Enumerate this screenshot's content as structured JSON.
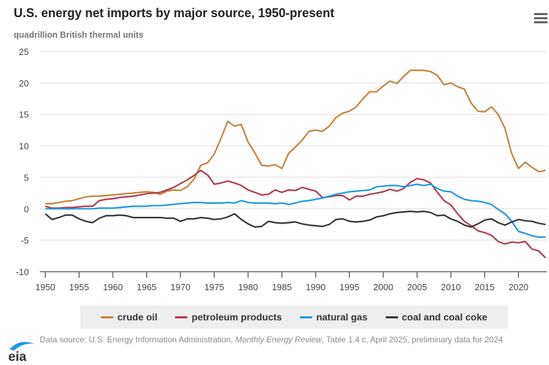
{
  "header": {
    "title": "U.S. energy net imports by major source, 1950-present",
    "subtitle": "quadrillion British thermal units",
    "menu_icon": "hamburger-menu-icon"
  },
  "colors": {
    "crude_oil": "#c8803a",
    "petroleum_products": "#b03a4c",
    "natural_gas": "#1a9ae0",
    "coal": "#333333",
    "grid": "#e8e8e8",
    "axis": "#666666"
  },
  "footer": {
    "logo_text": "eia",
    "source_prefix": "Data source: U.S. Energy Information Administration, ",
    "source_italic": "Monthly Energy Review",
    "source_suffix": ", Table 1.4 c, April 2025, preliminary data for 2024"
  },
  "chart_data": {
    "type": "line",
    "title": "U.S. energy net imports by major source, 1950-present",
    "ylabel": "quadrillion British thermal units",
    "xlabel": "",
    "ylim": [
      -10,
      25
    ],
    "xlim": [
      1950,
      2024
    ],
    "yticks": [
      25,
      20,
      15,
      10,
      5,
      0,
      -5,
      -10
    ],
    "xticks": [
      1950,
      1955,
      1960,
      1965,
      1970,
      1975,
      1980,
      1985,
      1990,
      1995,
      2000,
      2005,
      2010,
      2015,
      2020
    ],
    "grid": true,
    "legend_position": "bottom",
    "x_start": 1950,
    "series": [
      {
        "name": "crude oil",
        "key": "crude_oil",
        "values": [
          0.8,
          0.8,
          1.0,
          1.2,
          1.3,
          1.6,
          1.9,
          2.0,
          2.0,
          2.1,
          2.2,
          2.3,
          2.4,
          2.5,
          2.6,
          2.7,
          2.6,
          2.3,
          2.8,
          3.0,
          2.9,
          3.5,
          4.7,
          6.9,
          7.3,
          8.7,
          11.2,
          13.9,
          13.1,
          13.4,
          10.6,
          8.9,
          6.9,
          6.8,
          7.0,
          6.4,
          8.8,
          9.8,
          10.9,
          12.3,
          12.5,
          12.3,
          13.1,
          14.5,
          15.2,
          15.5,
          16.2,
          17.5,
          18.6,
          18.6,
          19.5,
          20.3,
          19.9,
          21.0,
          22.0,
          22.0,
          22.0,
          21.8,
          21.2,
          19.7,
          20.0,
          19.4,
          19.0,
          16.8,
          15.5,
          15.4,
          16.2,
          15.0,
          12.8,
          8.8,
          6.4,
          7.4,
          6.6,
          5.9,
          6.1
        ]
      },
      {
        "name": "petroleum products",
        "key": "petroleum_products",
        "values": [
          0.4,
          0.1,
          0.1,
          0.2,
          0.2,
          0.3,
          0.4,
          0.4,
          1.3,
          1.5,
          1.6,
          1.8,
          1.9,
          2.0,
          2.2,
          2.4,
          2.5,
          2.6,
          3.0,
          3.4,
          4.0,
          4.6,
          5.3,
          6.1,
          5.4,
          3.9,
          4.1,
          4.4,
          4.1,
          3.7,
          3.0,
          2.6,
          2.2,
          2.3,
          3.0,
          2.6,
          3.0,
          2.9,
          3.4,
          3.1,
          2.8,
          1.8,
          1.9,
          2.1,
          2.1,
          1.4,
          2.0,
          2.0,
          2.3,
          2.5,
          2.7,
          3.1,
          2.8,
          3.2,
          4.2,
          4.8,
          4.6,
          4.1,
          2.6,
          1.3,
          0.6,
          -0.8,
          -2.0,
          -2.7,
          -3.5,
          -3.8,
          -4.2,
          -5.2,
          -5.6,
          -5.3,
          -5.4,
          -5.2,
          -6.4,
          -6.7,
          -7.8
        ]
      },
      {
        "name": "natural gas",
        "key": "natural_gas",
        "values": [
          0.0,
          0.0,
          0.0,
          0.0,
          0.0,
          0.0,
          0.0,
          0.0,
          0.1,
          0.1,
          0.1,
          0.2,
          0.3,
          0.4,
          0.4,
          0.4,
          0.5,
          0.5,
          0.6,
          0.7,
          0.8,
          0.9,
          1.0,
          1.0,
          0.9,
          0.9,
          0.9,
          1.0,
          0.9,
          1.3,
          1.0,
          0.9,
          0.9,
          0.9,
          0.8,
          0.9,
          0.7,
          0.9,
          1.2,
          1.3,
          1.5,
          1.7,
          2.0,
          2.3,
          2.5,
          2.7,
          2.8,
          2.9,
          3.0,
          3.5,
          3.6,
          3.7,
          3.7,
          3.5,
          3.7,
          3.9,
          3.7,
          3.9,
          3.2,
          2.8,
          2.7,
          2.0,
          1.5,
          1.3,
          1.2,
          1.0,
          0.7,
          -0.1,
          -0.8,
          -2.0,
          -3.6,
          -3.9,
          -4.3,
          -4.5,
          -4.5
        ]
      },
      {
        "name": "coal and coal coke",
        "key": "coal",
        "values": [
          -0.8,
          -1.7,
          -1.4,
          -1.0,
          -1.0,
          -1.6,
          -2.0,
          -2.2,
          -1.5,
          -1.1,
          -1.1,
          -1.0,
          -1.1,
          -1.4,
          -1.4,
          -1.4,
          -1.4,
          -1.4,
          -1.5,
          -1.5,
          -2.0,
          -1.6,
          -1.6,
          -1.4,
          -1.5,
          -1.7,
          -1.6,
          -1.3,
          -0.8,
          -1.7,
          -2.4,
          -2.9,
          -2.8,
          -2.0,
          -2.2,
          -2.3,
          -2.2,
          -2.1,
          -2.4,
          -2.6,
          -2.7,
          -2.8,
          -2.5,
          -1.7,
          -1.6,
          -2.0,
          -2.1,
          -2.0,
          -1.8,
          -1.3,
          -1.1,
          -0.8,
          -0.6,
          -0.5,
          -0.4,
          -0.5,
          -0.4,
          -0.6,
          -1.1,
          -1.0,
          -1.6,
          -2.0,
          -2.6,
          -2.9,
          -2.4,
          -1.8,
          -1.6,
          -2.2,
          -2.6,
          -2.1,
          -1.7,
          -1.9,
          -2.0,
          -2.3,
          -2.5
        ]
      }
    ]
  }
}
